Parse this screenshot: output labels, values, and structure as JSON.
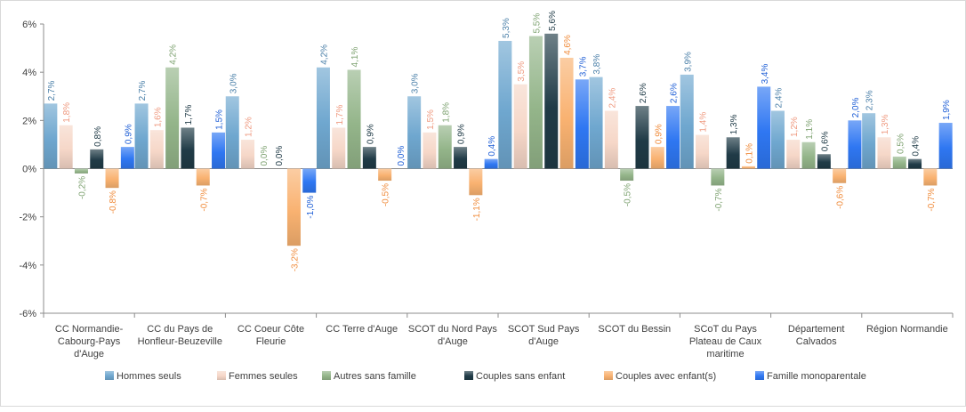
{
  "chart_data": {
    "type": "bar",
    "title": "",
    "xlabel": "",
    "ylabel": "",
    "ylim": [
      -6,
      6
    ],
    "yticks": [
      -6,
      -4,
      -2,
      0,
      2,
      4,
      6
    ],
    "ytick_labels": [
      "-6%",
      "-4%",
      "-2%",
      "0%",
      "2%",
      "4%",
      "6%"
    ],
    "grid": false,
    "legend_position": "bottom",
    "categories": [
      [
        "CC Normandie-",
        "Cabourg-Pays",
        "d'Auge"
      ],
      [
        "CC du Pays de",
        "Honfleur-Beuzeville"
      ],
      [
        "CC Coeur Côte",
        "Fleurie"
      ],
      [
        "CC Terre d'Auge"
      ],
      [
        "SCOT du Nord Pays",
        "d'Auge"
      ],
      [
        "SCOT Sud Pays",
        "d'Auge"
      ],
      [
        "SCOT du Bessin"
      ],
      [
        "SCoT du Pays",
        "Plateau de Caux",
        "maritime"
      ],
      [
        "Département",
        "Calvados"
      ],
      [
        "Région Normandie"
      ]
    ],
    "series": [
      {
        "name": "Hommes seuls",
        "color": "#6fa7cf",
        "label_color": "#4a7fa8",
        "values": [
          2.7,
          2.7,
          3.0,
          4.2,
          3.0,
          5.3,
          3.8,
          3.9,
          2.4,
          2.3
        ],
        "labels": [
          "2,7%",
          "2,7%",
          "3,0%",
          "4,2%",
          "3,0%",
          "5,3%",
          "3,8%",
          "3,9%",
          "2,4%",
          "2,3%"
        ]
      },
      {
        "name": "Femmes seules",
        "color": "#f6d7c8",
        "label_color": "#ef9a80",
        "values": [
          1.8,
          1.6,
          1.2,
          1.7,
          1.5,
          3.5,
          2.4,
          1.4,
          1.2,
          1.3
        ],
        "labels": [
          "1,8%",
          "1,6%",
          "1,2%",
          "1,7%",
          "1,5%",
          "3,5%",
          "2,4%",
          "1,4%",
          "1,2%",
          "1,3%"
        ]
      },
      {
        "name": "Autres sans famille",
        "color": "#94b58a",
        "label_color": "#7fa372",
        "values": [
          -0.2,
          4.2,
          0.0,
          4.1,
          1.8,
          5.5,
          -0.5,
          -0.7,
          1.1,
          0.5
        ],
        "labels": [
          "-0,2%",
          "4,2%",
          "0,0%",
          "4,1%",
          "1,8%",
          "5,5%",
          "-0,5%",
          "-0,7%",
          "1,1%",
          "0,5%"
        ]
      },
      {
        "name": "Couples sans enfant",
        "color": "#203b47",
        "label_color": "#203b47",
        "values": [
          0.8,
          1.7,
          0.0,
          0.9,
          0.9,
          5.6,
          2.6,
          1.3,
          0.6,
          0.4
        ],
        "labels": [
          "0,8%",
          "1,7%",
          "0,0%",
          "0,9%",
          "0,9%",
          "5,6%",
          "2,6%",
          "1,3%",
          "0,6%",
          "0,4%"
        ]
      },
      {
        "name": "Couples avec enfant(s)",
        "color": "#f9b271",
        "label_color": "#f08c3c",
        "values": [
          -0.8,
          -0.7,
          -3.2,
          -0.5,
          -1.1,
          4.6,
          0.9,
          0.1,
          -0.6,
          -0.7
        ],
        "labels": [
          "-0,8%",
          "-0,7%",
          "-3,2%",
          "-0,5%",
          "-1,1%",
          "4,6%",
          "0,9%",
          "0,1%",
          "-0,6%",
          "-0,7%"
        ]
      },
      {
        "name": "Famille monoparentale",
        "color": "#2f77f2",
        "label_color": "#1f5fd6",
        "values": [
          0.9,
          1.5,
          -1.0,
          0.0,
          0.4,
          3.7,
          2.6,
          3.4,
          2.0,
          1.9
        ],
        "labels": [
          "0,9%",
          "1,5%",
          "-1,0%",
          "0,0%",
          "0,4%",
          "3,7%",
          "2,6%",
          "3,4%",
          "2,0%",
          "1,9%"
        ]
      }
    ]
  }
}
